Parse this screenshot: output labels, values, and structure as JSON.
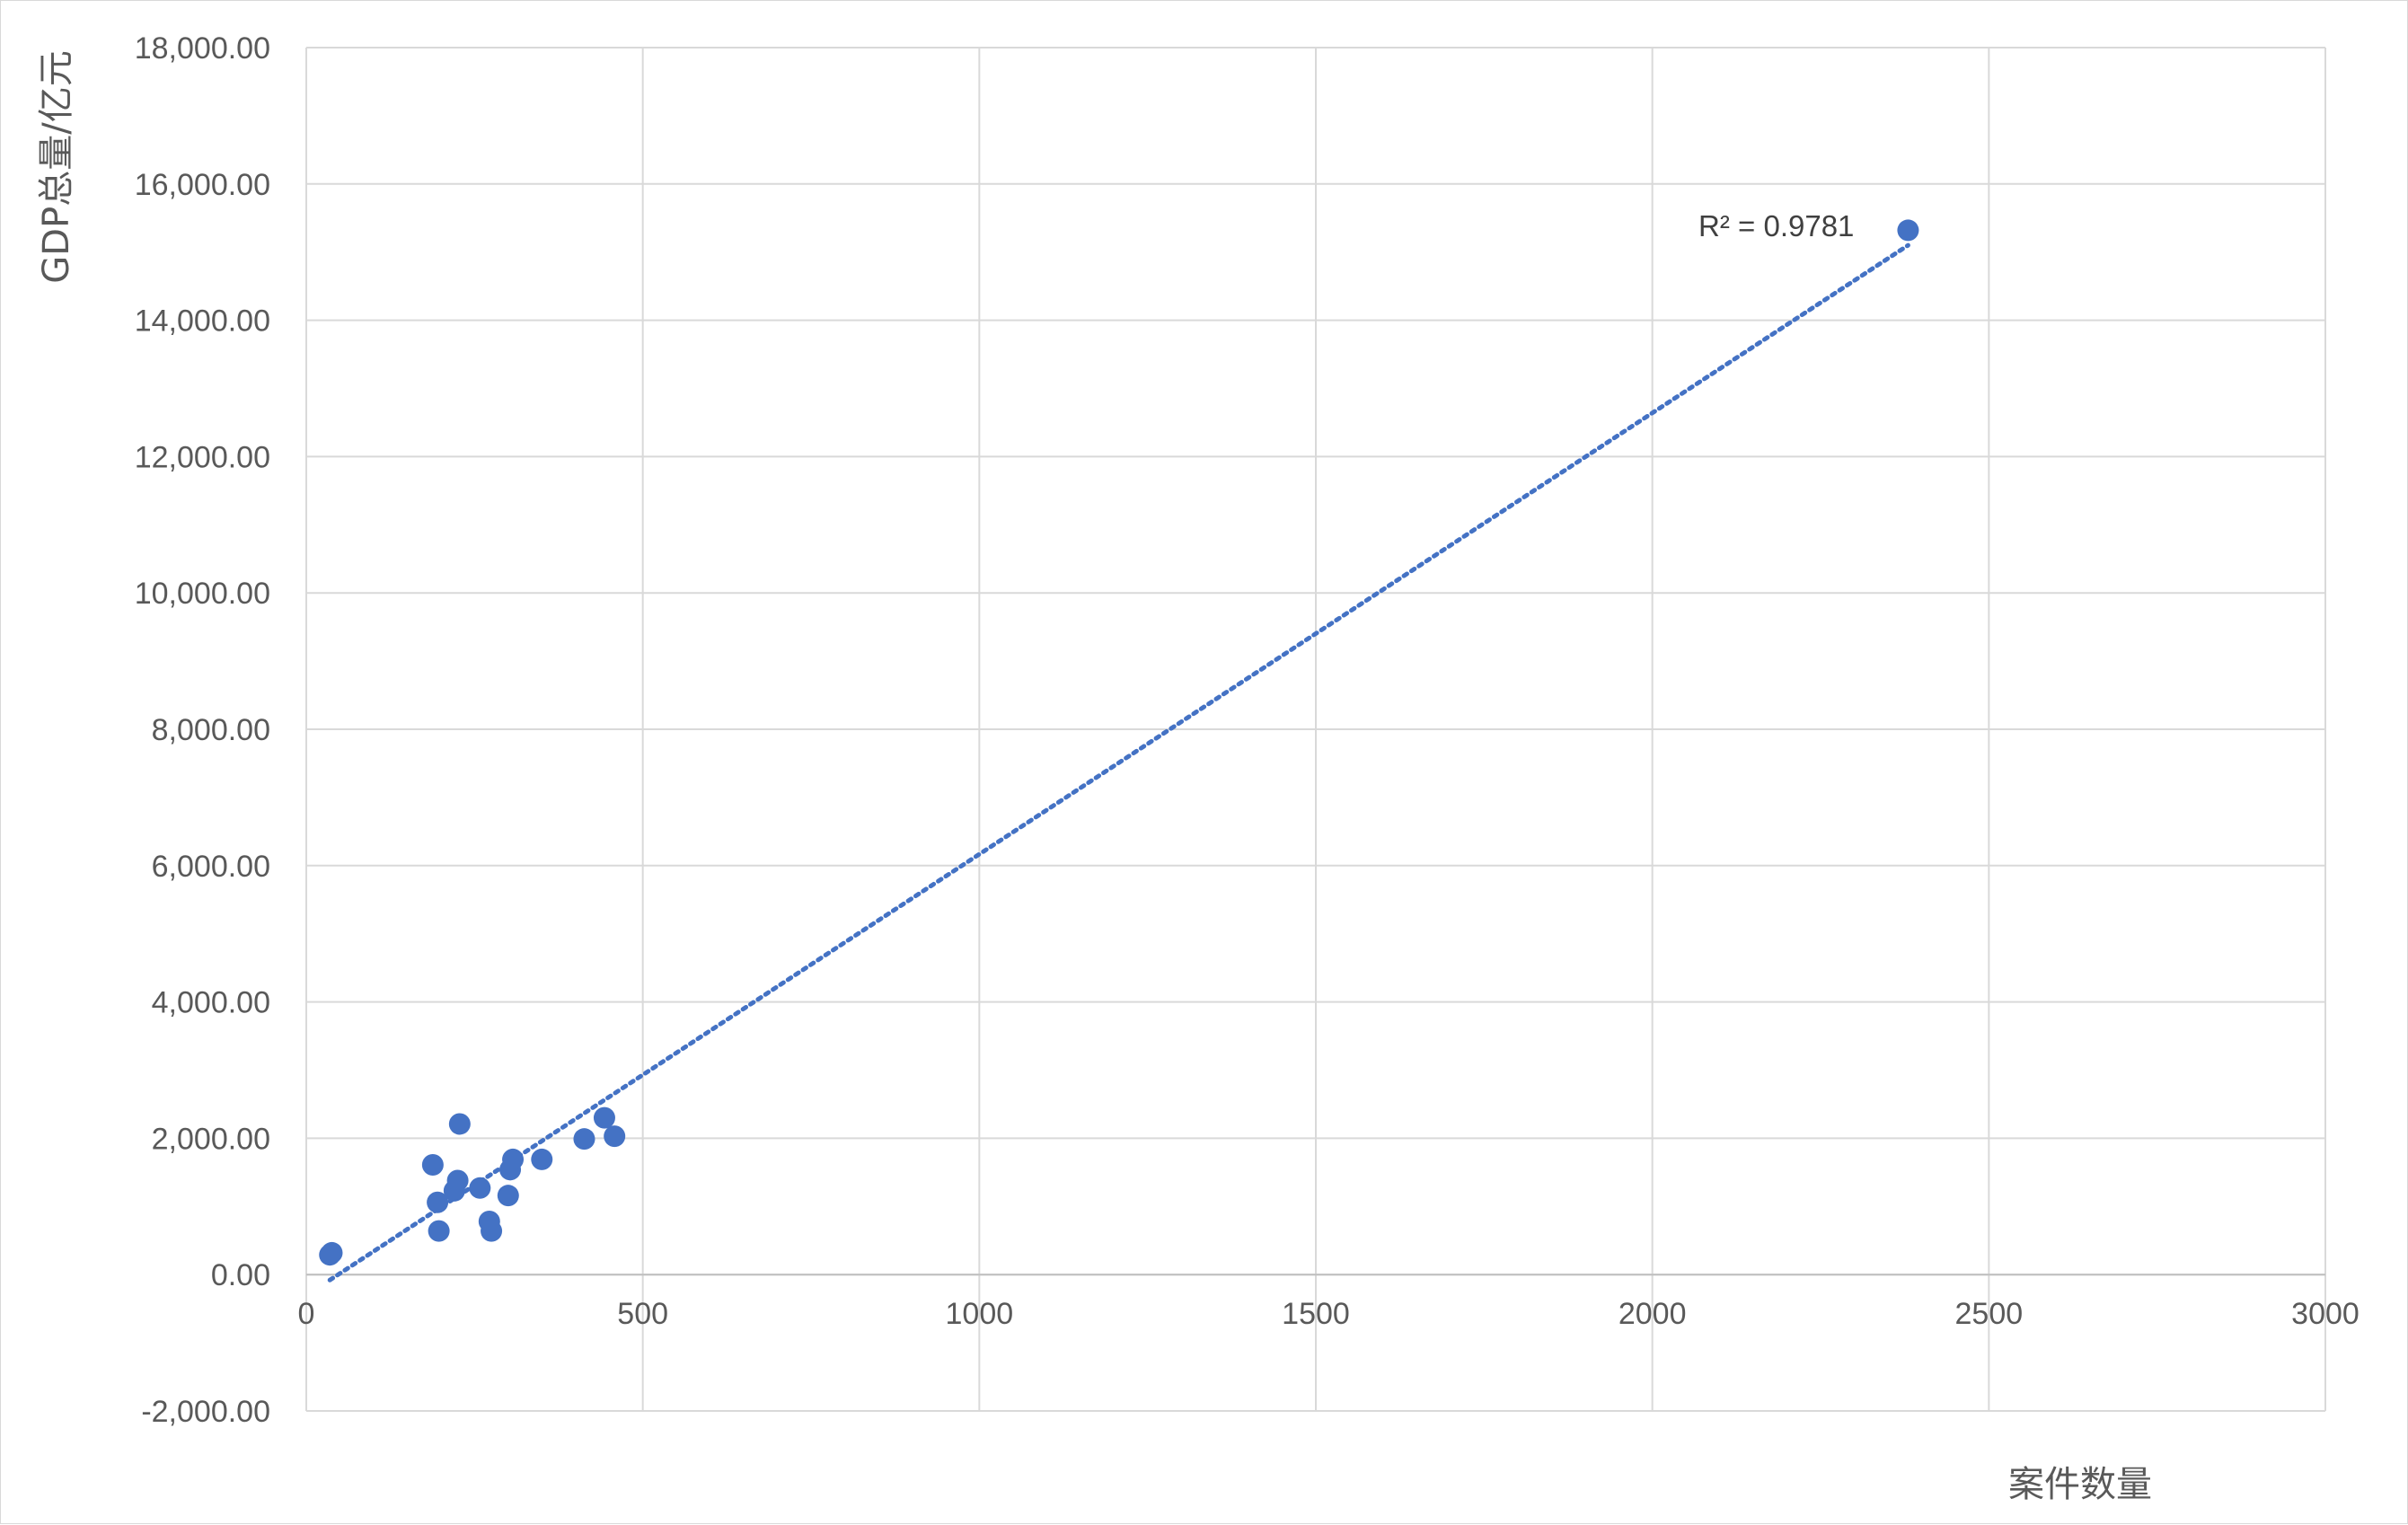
{
  "chart_data": {
    "type": "scatter",
    "title": "",
    "xlabel": "案件数量",
    "ylabel": "GDP总量/亿元",
    "xlim": [
      0,
      3000
    ],
    "ylim": [
      -2000,
      18000
    ],
    "x_ticks": [
      0,
      500,
      1000,
      1500,
      2000,
      2500,
      3000
    ],
    "x_tick_labels": [
      "0",
      "500",
      "1000",
      "1500",
      "2000",
      "2500",
      "3000"
    ],
    "y_ticks": [
      -2000,
      0,
      2000,
      4000,
      6000,
      8000,
      10000,
      12000,
      14000,
      16000,
      18000
    ],
    "y_tick_labels": [
      "-2,000.00",
      "0.00",
      "2,000.00",
      "4,000.00",
      "6,000.00",
      "8,000.00",
      "10,000.00",
      "12,000.00",
      "14,000.00",
      "16,000.00",
      "18,000.00"
    ],
    "grid": true,
    "series": [
      {
        "color": "#4472c4",
        "points": [
          {
            "x": 35,
            "y": 290
          },
          {
            "x": 38,
            "y": 320
          },
          {
            "x": 188,
            "y": 1610
          },
          {
            "x": 195,
            "y": 1060
          },
          {
            "x": 197,
            "y": 640
          },
          {
            "x": 220,
            "y": 1230
          },
          {
            "x": 225,
            "y": 1380
          },
          {
            "x": 228,
            "y": 2210
          },
          {
            "x": 258,
            "y": 1270
          },
          {
            "x": 272,
            "y": 780
          },
          {
            "x": 275,
            "y": 640
          },
          {
            "x": 300,
            "y": 1160
          },
          {
            "x": 303,
            "y": 1540
          },
          {
            "x": 307,
            "y": 1690
          },
          {
            "x": 350,
            "y": 1690
          },
          {
            "x": 413,
            "y": 1990
          },
          {
            "x": 443,
            "y": 2300
          },
          {
            "x": 458,
            "y": 2030
          },
          {
            "x": 2380,
            "y": 15320
          }
        ]
      }
    ],
    "trendline": {
      "type": "linear",
      "style": "dotted",
      "color": "#4472c4",
      "x_range": [
        35,
        2380
      ],
      "y_range": [
        -80,
        15100
      ],
      "label": "R² = 0.9781"
    }
  }
}
